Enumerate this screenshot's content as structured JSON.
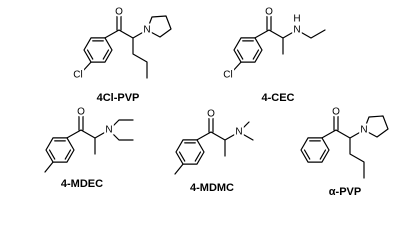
{
  "compounds": [
    {
      "name": "4Cl-PVP",
      "atoms": [
        "O",
        "N",
        "Cl"
      ]
    },
    {
      "name": "4-CEC",
      "atoms": [
        "O",
        "H",
        "N",
        "Cl"
      ]
    },
    {
      "name": "4-MDEC",
      "atoms": [
        "O",
        "N"
      ]
    },
    {
      "name": "4-MDMC",
      "atoms": [
        "O",
        "N"
      ]
    },
    {
      "name": "α-PVP",
      "atoms": [
        "O",
        "N"
      ]
    }
  ]
}
